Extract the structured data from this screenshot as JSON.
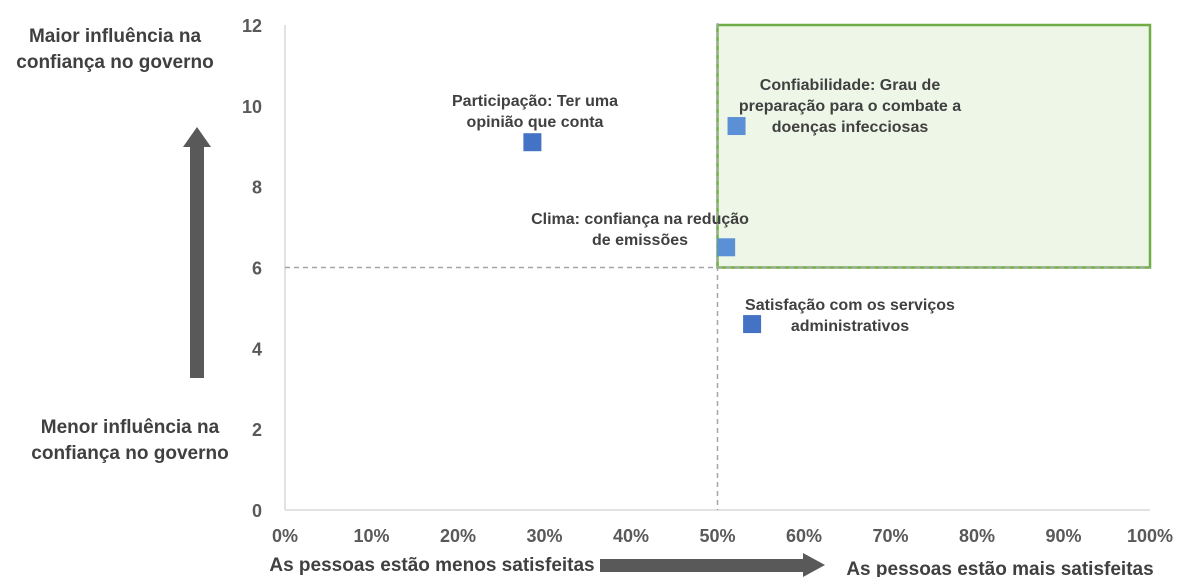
{
  "colors": {
    "axis": "#d9d9d9",
    "tick_text": "#595959",
    "label_text": "#404040",
    "point_dark": "#4472c4",
    "point_light": "#5b8fd6",
    "highlight_fill": "#eef6e8",
    "highlight_stroke": "#70ad47",
    "arrow": "#595959",
    "divider": "#a6a6a6"
  },
  "annotations": {
    "y_top": [
      "Maior influência na",
      "confiança no governo"
    ],
    "y_bottom": [
      "Menor influência na",
      "confiança no governo"
    ],
    "x_left": "As pessoas estão menos satisfeitas",
    "x_right": "As pessoas estão mais satisfeitas"
  },
  "chart_data": {
    "type": "scatter",
    "title": "",
    "xlabel": "",
    "ylabel": "",
    "xlim": [
      0,
      100
    ],
    "ylim": [
      0,
      12
    ],
    "x_ticks": [
      "0%",
      "10%",
      "20%",
      "30%",
      "40%",
      "50%",
      "60%",
      "70%",
      "80%",
      "90%",
      "100%"
    ],
    "y_ticks": [
      "0",
      "2",
      "4",
      "6",
      "8",
      "10",
      "12"
    ],
    "reference_lines": {
      "x": 50,
      "y": 6
    },
    "highlight_region": {
      "x": [
        50,
        100
      ],
      "y": [
        6,
        12
      ]
    },
    "points": [
      {
        "x": 28.6,
        "y": 9.1,
        "label": [
          "Participação: Ter uma",
          "opinião que conta"
        ],
        "color": "#4472c4"
      },
      {
        "x": 52.2,
        "y": 9.5,
        "label": [
          "Confiabilidade: Grau de",
          "preparação para o combate a",
          "doenças infecciosas"
        ],
        "color": "#5b8fd6"
      },
      {
        "x": 51.0,
        "y": 6.5,
        "label": [
          "Clima: confiança na redução",
          "de emissões"
        ],
        "color": "#5b8fd6"
      },
      {
        "x": 54.0,
        "y": 4.6,
        "label": [
          "Satisfação com os serviços",
          "administrativos"
        ],
        "color": "#4472c4"
      }
    ]
  }
}
